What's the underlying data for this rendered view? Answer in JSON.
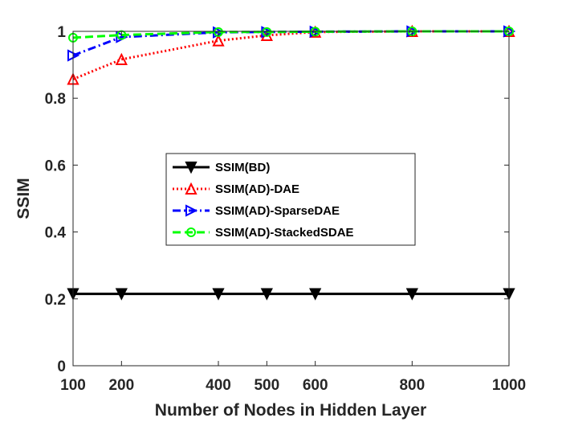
{
  "chart_data": {
    "type": "line",
    "title": "",
    "xlabel": "Number of Nodes in Hidden Layer",
    "ylabel": "SSIM",
    "x": [
      100,
      200,
      400,
      500,
      600,
      800,
      1000
    ],
    "xticks": [
      100,
      200,
      400,
      500,
      600,
      800,
      1000
    ],
    "xtick_labels": [
      "100",
      "200",
      "400",
      "500",
      "600",
      "800",
      "1000"
    ],
    "yticks": [
      0,
      0.2,
      0.4,
      0.6,
      0.8,
      1
    ],
    "ytick_labels": [
      "0",
      "0.2",
      "0.4",
      "0.6",
      "0.8",
      "1"
    ],
    "xlim": [
      100,
      1000
    ],
    "ylim": [
      0,
      1
    ],
    "grid": false,
    "legend_position": "center-left",
    "series": [
      {
        "name": "SSIM(BD)",
        "color": "#000000",
        "dash": "solid",
        "marker": "triangle-down",
        "values": [
          0.215,
          0.215,
          0.215,
          0.215,
          0.215,
          0.215,
          0.215
        ]
      },
      {
        "name": "SSIM(AD)-DAE",
        "color": "#ff0000",
        "dash": "dotted",
        "marker": "triangle-up",
        "values": [
          0.857,
          0.916,
          0.972,
          0.988,
          0.998,
          1.0,
          1.0
        ]
      },
      {
        "name": "SSIM(AD)-SparseDAE",
        "color": "#0000ff",
        "dash": "dashdot",
        "marker": "triangle-right",
        "values": [
          0.928,
          0.983,
          0.997,
          0.998,
          0.999,
          1.0,
          1.0
        ]
      },
      {
        "name": "SSIM(AD)-StackedSDAE",
        "color": "#00ff00",
        "dash": "dashed",
        "marker": "circle",
        "values": [
          0.981,
          0.989,
          0.998,
          0.998,
          0.999,
          1.0,
          1.0
        ]
      }
    ]
  }
}
